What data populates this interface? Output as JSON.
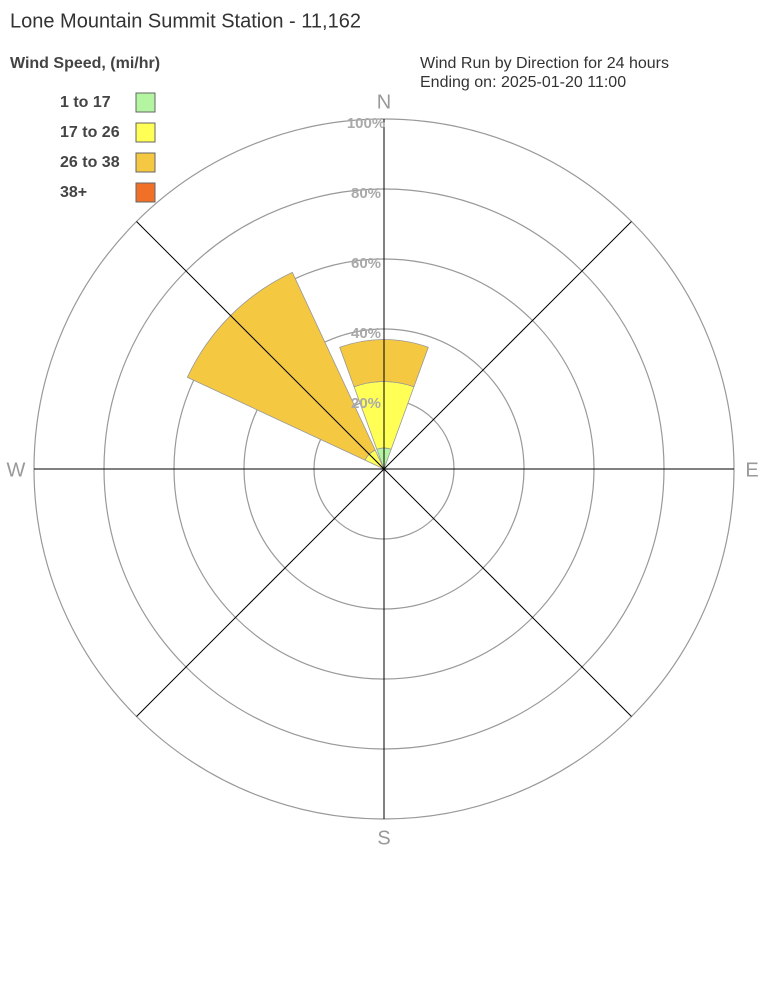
{
  "chart_data": {
    "type": "windrose",
    "title": "Lone Mountain Summit Station - 11,162",
    "subtitle": [
      "Wind Run by Direction for 24 hours",
      "Ending on: 2025-01-20 11:00"
    ],
    "legend_title": "Wind Speed, (mi/hr)",
    "categories": [
      "N",
      null,
      "E",
      null,
      "S",
      null,
      "W",
      null
    ],
    "series": [
      {
        "name": "1 to 17",
        "color": "#b3f5a0",
        "values": [
          6,
          0,
          0,
          0,
          0,
          0,
          0,
          0
        ]
      },
      {
        "name": "17 to 26",
        "color": "#ffff55",
        "values": [
          19,
          0,
          0,
          0,
          0,
          0,
          0,
          6
        ]
      },
      {
        "name": "26 to 38",
        "color": "#f5c842",
        "values": [
          12,
          0,
          0,
          0,
          0,
          0,
          0,
          56
        ]
      },
      {
        "name": "38+",
        "color": "#f07028",
        "values": [
          0,
          0,
          0,
          0,
          0,
          0,
          0,
          0
        ]
      }
    ],
    "rlim": [
      0,
      100
    ],
    "rticks": [
      {
        "value": 20,
        "label": "20%"
      },
      {
        "value": 40,
        "label": "40%"
      },
      {
        "value": 60,
        "label": "60%"
      },
      {
        "value": 80,
        "label": "80%"
      },
      {
        "value": 100,
        "label": "100%"
      }
    ]
  }
}
